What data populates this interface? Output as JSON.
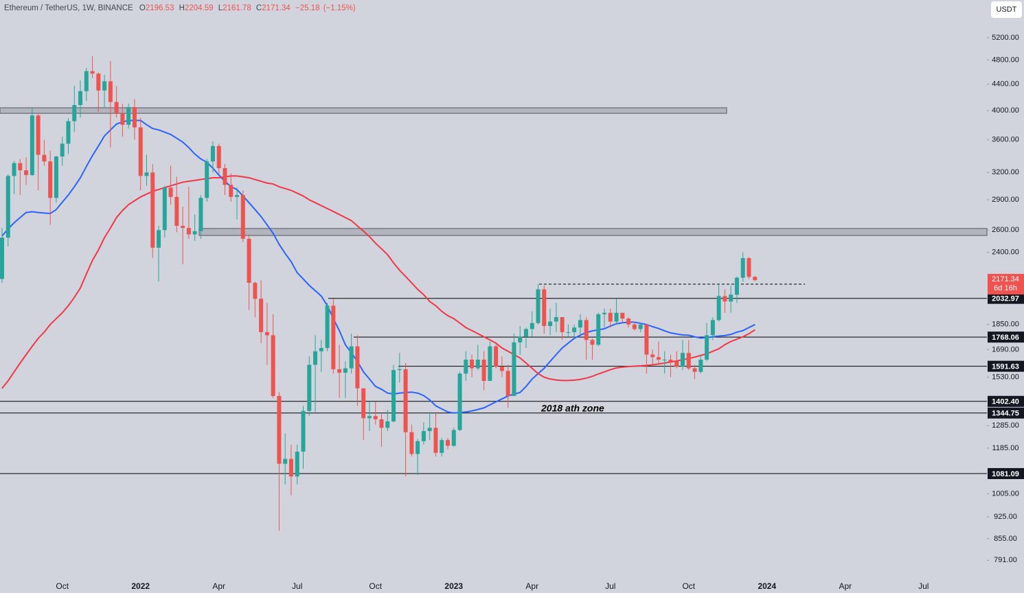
{
  "header": {
    "symbol": "Ethereum / TetherUS, 1W, BINANCE",
    "ohlc_labels": [
      "O",
      "H",
      "L",
      "C"
    ],
    "change": {
      "value": -25.18,
      "label": "−25.18"
    },
    "change_pct": {
      "value": -1.15,
      "label": "(−1.15%)"
    }
  },
  "currency": "USDT",
  "countdown": "6d 16h",
  "chart_data": {
    "type": "candlestick",
    "log_scale": true,
    "grid": false,
    "up_color": "#26a69a",
    "down_color": "#ef5350",
    "ylim": [
      746,
      5958
    ],
    "yticks": [
      {
        "value": 5200,
        "label": "5200.00"
      },
      {
        "value": 4800,
        "label": "4800.00"
      },
      {
        "value": 4400,
        "label": "4400.00"
      },
      {
        "value": 4000,
        "label": "4000.00"
      },
      {
        "value": 3600,
        "label": "3600.00"
      },
      {
        "value": 3200,
        "label": "3200.00"
      },
      {
        "value": 2900,
        "label": "2900.00"
      },
      {
        "value": 2600,
        "label": "2600.00"
      },
      {
        "value": 2400,
        "label": "2400.00"
      },
      {
        "value": 1850,
        "label": "1850.00"
      },
      {
        "value": 1690,
        "label": "1690.00"
      },
      {
        "value": 1530,
        "label": "1530.00"
      },
      {
        "value": 1285,
        "label": "1285.00"
      },
      {
        "value": 1185,
        "label": "1185.00"
      },
      {
        "value": 1005,
        "label": "1005.00"
      },
      {
        "value": 925,
        "label": "925.00"
      },
      {
        "value": 855,
        "label": "855.00"
      },
      {
        "value": 791,
        "label": "791.00"
      }
    ],
    "categories": [
      null,
      null,
      null,
      null,
      null,
      null,
      null,
      null,
      null,
      null,
      "Oct",
      null,
      null,
      null,
      null,
      null,
      null,
      null,
      null,
      null,
      null,
      null,
      null,
      "2022",
      null,
      null,
      null,
      null,
      null,
      null,
      null,
      null,
      null,
      null,
      null,
      null,
      "Apr",
      null,
      null,
      null,
      null,
      null,
      null,
      null,
      null,
      null,
      null,
      null,
      null,
      "Jul",
      null,
      null,
      null,
      null,
      null,
      null,
      null,
      null,
      null,
      null,
      null,
      null,
      "Oct",
      null,
      null,
      null,
      null,
      null,
      null,
      null,
      null,
      null,
      null,
      null,
      null,
      "2023",
      null,
      null,
      null,
      null,
      null,
      null,
      null,
      null,
      null,
      null,
      null,
      null,
      "Apr",
      null,
      null,
      null,
      null,
      null,
      null,
      null,
      null,
      null,
      null,
      null,
      null,
      "Jul",
      null,
      null,
      null,
      null,
      null,
      null,
      null,
      null,
      null,
      null,
      null,
      null,
      "Oct",
      null,
      null,
      null,
      null,
      null,
      null,
      null,
      null,
      null,
      null,
      null,
      null,
      "2024",
      null,
      null,
      null,
      null,
      null,
      null,
      null,
      null,
      null,
      null,
      null,
      null,
      "Apr",
      null,
      null,
      null,
      null,
      null,
      null,
      null,
      null,
      null,
      null,
      null,
      null,
      "Jul",
      null,
      null,
      null,
      null,
      null,
      null
    ],
    "open": [
      2180,
      2530,
      3160,
      3310,
      3225,
      3170,
      3930,
      3410,
      3330,
      2920,
      3390,
      3550,
      3850,
      4080,
      4290,
      4610,
      4570,
      4300,
      4445,
      4125,
      3960,
      3800,
      4050,
      3765,
      3160,
      3200,
      2440,
      2600,
      3030,
      2930,
      2640,
      2620,
      2560,
      2590,
      2920,
      3330,
      3520,
      3250,
      3060,
      2930,
      2950,
      2520,
      2150,
      2030,
      1800,
      1780,
      1430,
      1120,
      1140,
      1070,
      1170,
      1355,
      1600,
      1680,
      1700,
      1980,
      1575,
      1555,
      1580,
      1710,
      1470,
      1320,
      1330,
      1315,
      1275,
      1305,
      1570,
      1575,
      1255,
      1160,
      1215,
      1260,
      1275,
      1165,
      1220,
      1195,
      1265,
      1550,
      1630,
      1580,
      1630,
      1510,
      1710,
      1590,
      1565,
      1430,
      1735,
      1770,
      1820,
      1860,
      2100,
      1840,
      1870,
      1900,
      1800,
      1800,
      1830,
      1880,
      1750,
      1720,
      1920,
      1930,
      1870,
      1930,
      1890,
      1850,
      1820,
      1850,
      1660,
      1645,
      1630,
      1630,
      1620,
      1590,
      1670,
      1580,
      1560,
      1630,
      1780,
      1880,
      2050,
      2010,
      2060,
      2190,
      2350,
      2196.53,
      null,
      null,
      null,
      null,
      null,
      null,
      null,
      null,
      null,
      null,
      null,
      null,
      null,
      null,
      null,
      null,
      null,
      null,
      null,
      null,
      null,
      null,
      null,
      null,
      null,
      null,
      null,
      null,
      null,
      null,
      null,
      null,
      null,
      null
    ],
    "high": [
      2620,
      3180,
      3335,
      3360,
      3380,
      4030,
      3970,
      3600,
      3460,
      3400,
      3640,
      3890,
      4375,
      4460,
      4665,
      4868,
      4590,
      4550,
      4780,
      4370,
      4100,
      4100,
      4170,
      3900,
      3410,
      3300,
      2640,
      3050,
      3280,
      3150,
      2830,
      3040,
      2750,
      2950,
      3360,
      3580,
      3550,
      3300,
      3190,
      3030,
      3000,
      2560,
      2160,
      2170,
      2000,
      1920,
      1450,
      1250,
      1200,
      1200,
      1380,
      1650,
      1780,
      1750,
      2000,
      2030,
      1720,
      1620,
      1790,
      1780,
      1470,
      1400,
      1400,
      1340,
      1360,
      1600,
      1670,
      1610,
      1290,
      1225,
      1300,
      1350,
      1350,
      1230,
      1230,
      1275,
      1560,
      1680,
      1660,
      1720,
      1680,
      1740,
      1720,
      1650,
      1600,
      1790,
      1840,
      1830,
      1940,
      2140,
      2130,
      1960,
      2000,
      1900,
      1850,
      1850,
      1920,
      1900,
      1760,
      1930,
      1960,
      1960,
      2030,
      1930,
      1900,
      1870,
      1860,
      1850,
      1690,
      1740,
      1680,
      1660,
      1680,
      1750,
      1750,
      1600,
      1660,
      1860,
      1900,
      2140,
      2100,
      2130,
      2200,
      2400,
      2360,
      2204.59,
      null,
      null,
      null,
      null,
      null,
      null,
      null,
      null,
      null,
      null,
      null,
      null,
      null,
      null,
      null,
      null,
      null,
      null,
      null,
      null,
      null,
      null,
      null,
      null,
      null,
      null,
      null,
      null,
      null,
      null,
      null,
      null,
      null,
      null
    ],
    "low": [
      2150,
      2450,
      2960,
      2950,
      3060,
      3160,
      3000,
      3280,
      2650,
      2870,
      3280,
      3420,
      3700,
      3900,
      4140,
      4500,
      3980,
      4040,
      3500,
      3900,
      3640,
      3750,
      3600,
      3000,
      3050,
      2350,
      2160,
      2530,
      2850,
      2580,
      2300,
      2520,
      2500,
      2520,
      2880,
      3200,
      3180,
      2950,
      2880,
      2700,
      2490,
      1950,
      1900,
      1730,
      1600,
      1420,
      880,
      1040,
      1000,
      1040,
      1100,
      1330,
      1350,
      1560,
      1680,
      1550,
      1420,
      1420,
      1550,
      1380,
      1220,
      1260,
      1290,
      1190,
      1260,
      1300,
      1500,
      1070,
      1150,
      1075,
      1200,
      1220,
      1150,
      1150,
      1180,
      1190,
      1260,
      1510,
      1530,
      1570,
      1460,
      1510,
      1580,
      1530,
      1370,
      1430,
      1660,
      1700,
      1770,
      1850,
      1790,
      1780,
      1800,
      1750,
      1770,
      1760,
      1780,
      1630,
      1630,
      1710,
      1830,
      1830,
      1850,
      1860,
      1830,
      1810,
      1800,
      1550,
      1600,
      1610,
      1550,
      1530,
      1580,
      1570,
      1570,
      1520,
      1550,
      1620,
      1750,
      1870,
      1930,
      1930,
      2000,
      2160,
      2180,
      2161.78,
      null,
      null,
      null,
      null,
      null,
      null,
      null,
      null,
      null,
      null,
      null,
      null,
      null,
      null,
      null,
      null,
      null,
      null,
      null,
      null,
      null,
      null,
      null,
      null,
      null,
      null,
      null,
      null,
      null,
      null,
      null,
      null,
      null,
      null
    ],
    "close": [
      2530,
      3160,
      3310,
      3225,
      3170,
      3930,
      3410,
      3330,
      2920,
      3390,
      3550,
      3850,
      4080,
      4290,
      4610,
      4570,
      4300,
      4445,
      4125,
      3960,
      3800,
      4050,
      3765,
      3160,
      3200,
      2440,
      2600,
      3030,
      2930,
      2640,
      2620,
      2560,
      2590,
      2920,
      3330,
      3520,
      3250,
      3060,
      2930,
      2950,
      2520,
      2150,
      2030,
      1800,
      1780,
      1430,
      1120,
      1140,
      1070,
      1170,
      1355,
      1600,
      1680,
      1700,
      1980,
      1575,
      1555,
      1580,
      1710,
      1470,
      1320,
      1330,
      1315,
      1275,
      1305,
      1570,
      1575,
      1255,
      1160,
      1215,
      1260,
      1275,
      1165,
      1220,
      1195,
      1265,
      1550,
      1630,
      1580,
      1630,
      1510,
      1710,
      1590,
      1565,
      1430,
      1735,
      1770,
      1820,
      1860,
      2100,
      1840,
      1870,
      1900,
      1800,
      1800,
      1830,
      1880,
      1750,
      1720,
      1920,
      1930,
      1870,
      1930,
      1890,
      1850,
      1820,
      1850,
      1660,
      1645,
      1630,
      1630,
      1620,
      1590,
      1670,
      1580,
      1560,
      1630,
      1780,
      1880,
      2050,
      2010,
      2060,
      2190,
      2350,
      2196.53,
      2171.34,
      null,
      null,
      null,
      null,
      null,
      null,
      null,
      null,
      null,
      null,
      null,
      null,
      null,
      null,
      null,
      null,
      null,
      null,
      null,
      null,
      null,
      null,
      null,
      null,
      null,
      null,
      null,
      null,
      null,
      null,
      null,
      null,
      null,
      null
    ],
    "moving_averages": [
      {
        "color": "#2962ff",
        "values": [
          2545,
          2610,
          2670,
          2720,
          2770,
          2778,
          2770,
          2765,
          2760,
          2800,
          2875,
          2950,
          3040,
          3140,
          3270,
          3400,
          3520,
          3650,
          3730,
          3810,
          3840,
          3860,
          3860,
          3860,
          3800,
          3750,
          3730,
          3700,
          3670,
          3620,
          3570,
          3500,
          3420,
          3360,
          3320,
          3250,
          3170,
          3100,
          3040,
          3010,
          2940,
          2870,
          2800,
          2730,
          2650,
          2570,
          2470,
          2390,
          2320,
          2230,
          2180,
          2130,
          2090,
          2050,
          1980,
          1890,
          1810,
          1720,
          1670,
          1620,
          1560,
          1520,
          1480,
          1465,
          1445,
          1440,
          1445,
          1448,
          1450,
          1445,
          1432,
          1410,
          1380,
          1365,
          1350,
          1345,
          1347,
          1350,
          1355,
          1362,
          1370,
          1385,
          1400,
          1415,
          1430,
          1440,
          1448,
          1480,
          1520,
          1550,
          1580,
          1620,
          1660,
          1700,
          1730,
          1760,
          1780,
          1798,
          1808,
          1815,
          1822,
          1840,
          1855,
          1862,
          1866,
          1866,
          1858,
          1850,
          1836,
          1824,
          1808,
          1795,
          1788,
          1782,
          1780,
          1770,
          1762,
          1765,
          1770,
          1775,
          1778,
          1785,
          1800,
          1810,
          1830,
          1850,
          null,
          null,
          null,
          null,
          null,
          null,
          null,
          null,
          null,
          null,
          null,
          null,
          null,
          null,
          null,
          null,
          null,
          null,
          null,
          null,
          null,
          null,
          null,
          null,
          null,
          null,
          null,
          null,
          null,
          null,
          null,
          null,
          null,
          null
        ]
      },
      {
        "color": "#f23645",
        "values": [
          1470,
          1510,
          1560,
          1610,
          1660,
          1710,
          1760,
          1800,
          1850,
          1890,
          1930,
          1980,
          2040,
          2110,
          2220,
          2330,
          2420,
          2530,
          2620,
          2720,
          2790,
          2850,
          2890,
          2930,
          2960,
          2990,
          3010,
          3030,
          3050,
          3070,
          3090,
          3100,
          3110,
          3120,
          3130,
          3140,
          3140,
          3150,
          3160,
          3160,
          3150,
          3140,
          3120,
          3100,
          3080,
          3070,
          3040,
          3020,
          3000,
          2970,
          2940,
          2900,
          2870,
          2840,
          2810,
          2780,
          2750,
          2720,
          2690,
          2640,
          2590,
          2540,
          2480,
          2430,
          2380,
          2310,
          2250,
          2200,
          2150,
          2100,
          2060,
          2010,
          1980,
          1940,
          1910,
          1890,
          1860,
          1830,
          1810,
          1790,
          1770,
          1750,
          1730,
          1700,
          1680,
          1660,
          1640,
          1610,
          1580,
          1550,
          1530,
          1520,
          1515,
          1512,
          1512,
          1514,
          1518,
          1525,
          1535,
          1548,
          1560,
          1572,
          1582,
          1587,
          1590,
          1592,
          1594,
          1596,
          1600,
          1605,
          1610,
          1617,
          1622,
          1630,
          1636,
          1645,
          1655,
          1665,
          1680,
          1695,
          1720,
          1740,
          1755,
          1770,
          1790,
          1815,
          null,
          null,
          null,
          null,
          null,
          null,
          null,
          null,
          null,
          null,
          null,
          null,
          null,
          null,
          null,
          null,
          null,
          null,
          null,
          null,
          null,
          null,
          null,
          null,
          null,
          null,
          null,
          null,
          null,
          null,
          null,
          null,
          null,
          null
        ]
      }
    ],
    "levels": [
      2032.97,
      1768.06,
      1591.63,
      {
        "value": 1402.4,
        "label": "1402.40"
      },
      1344.75,
      1081.09
    ],
    "zones": [
      {
        "low": 3960,
        "high": 4040
      },
      {
        "low": 2550,
        "high": 2615
      }
    ],
    "dashed_level": 2140,
    "annotation": "2018 ath zone"
  }
}
